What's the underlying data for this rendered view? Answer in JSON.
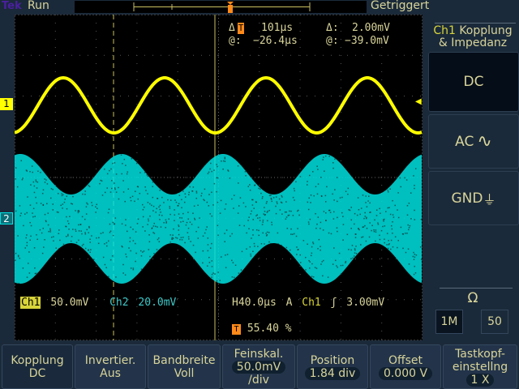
{
  "topbar": {
    "logo": "Tek",
    "run_state": "Run",
    "trigger_state": "Getriggert"
  },
  "cursor_readout": {
    "delta_t_label": "Δ",
    "delta_t": "101µs",
    "delta_v_label": "Δ:",
    "delta_v": "2.00mV",
    "at_t_label": "@:",
    "at_t": "−26.4µs",
    "at_v_label": "@:",
    "at_v": "−39.0mV"
  },
  "channels": {
    "ch1_marker": "1",
    "ch2_marker": "2",
    "ch1_label": "Ch1",
    "ch1_scale": "50.0mV",
    "ch2_label": "Ch2",
    "ch2_scale": "20.0mV",
    "ch1_color": "#ffff00",
    "ch2_color": "#00e0e0"
  },
  "timebase": {
    "h_label": "H",
    "h_scale": "40.0µs",
    "mode": "A",
    "trig_source": "Ch1",
    "trig_level": "3.00mV",
    "trig_pos_icon": "T",
    "trig_pos": "55.40 %"
  },
  "side_menu": {
    "title_ch": "Ch1",
    "title_rest": " Kopplung",
    "title_line2": "& Impedanz",
    "options": [
      {
        "label": "DC",
        "icon": "",
        "selected": true
      },
      {
        "label": "AC",
        "icon": "sine-wave-icon",
        "glyph": "∿",
        "selected": false
      },
      {
        "label": "GND",
        "icon": "ground-icon",
        "glyph": "⏚",
        "selected": false
      }
    ],
    "impedance_label": "Ω",
    "impedance_options": [
      "1M",
      "50"
    ],
    "impedance_selected": "1M"
  },
  "bottom_menu": [
    {
      "line1": "Kopplung",
      "line2": "DC",
      "line3": ""
    },
    {
      "line1": "Invertier.",
      "line2": "Aus",
      "line3": ""
    },
    {
      "line1": "Bandbreite",
      "line2": "Voll",
      "line3": ""
    },
    {
      "line1": "Feinskal.",
      "line2": "50.0mV",
      "line3": "/div"
    },
    {
      "line1": "Position",
      "line2": "1.84 div",
      "line3": ""
    },
    {
      "line1": "Offset",
      "line2": "0.000 V",
      "line3": ""
    },
    {
      "line1": "Tastkopf-",
      "line2": "einstellng",
      "line3": "1 X"
    }
  ]
}
